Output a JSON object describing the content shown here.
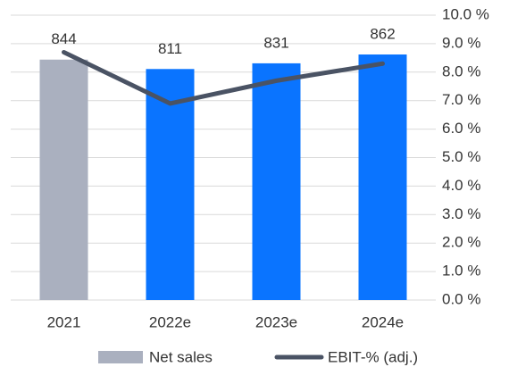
{
  "chart_data": {
    "type": "bar",
    "categories": [
      "2021",
      "2022e",
      "2023e",
      "2024e"
    ],
    "series": [
      {
        "name": "Net sales",
        "type": "bar",
        "color": "#aab0bf",
        "colors": [
          "#aab0bf",
          "#0a74ff",
          "#0a74ff",
          "#0a74ff"
        ],
        "values": [
          844,
          811,
          831,
          862
        ]
      },
      {
        "name": "EBIT-% (adj.)",
        "type": "line",
        "axis": "y2",
        "color": "#4a5364",
        "values": [
          8.7,
          6.9,
          7.7,
          8.3
        ]
      }
    ],
    "ylim": [
      0,
      1000
    ],
    "y2lim": [
      0,
      10
    ],
    "y2ticks": [
      {
        "value": 0,
        "label": "0.0 %"
      },
      {
        "value": 1,
        "label": "1.0 %"
      },
      {
        "value": 2,
        "label": "2.0 %"
      },
      {
        "value": 3,
        "label": "3.0 %"
      },
      {
        "value": 4,
        "label": "4.0 %"
      },
      {
        "value": 5,
        "label": "5.0 %"
      },
      {
        "value": 6,
        "label": "6.0 %"
      },
      {
        "value": 7,
        "label": "7.0 %"
      },
      {
        "value": 8,
        "label": "8.0 %"
      },
      {
        "value": 9,
        "label": "9.0 %"
      },
      {
        "value": 10,
        "label": "10.0 %"
      }
    ],
    "grid": true
  }
}
